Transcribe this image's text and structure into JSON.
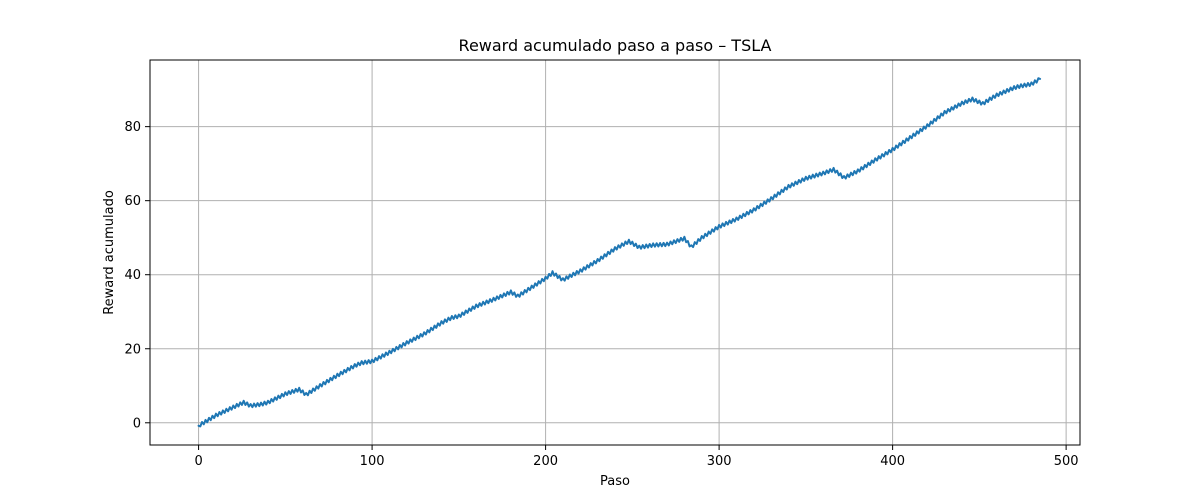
{
  "chart_data": {
    "type": "line",
    "title": "Reward acumulado paso a paso – TSLA",
    "xlabel": "Paso",
    "ylabel": "Reward acumulado",
    "xlim": [
      -28,
      508
    ],
    "ylim": [
      -6,
      98
    ],
    "xticks": [
      0,
      100,
      200,
      300,
      400,
      500
    ],
    "yticks": [
      0,
      20,
      40,
      60,
      80
    ],
    "grid": true,
    "colors": {
      "line": "#1f77b4",
      "grid": "#b0b0b0"
    },
    "series": [
      {
        "name": "",
        "x": [
          0,
          10,
          20,
          26,
          30,
          36,
          40,
          50,
          58,
          62,
          70,
          80,
          90,
          94,
          100,
          110,
          120,
          130,
          140,
          146,
          150,
          160,
          170,
          180,
          184,
          190,
          200,
          204,
          210,
          214,
          220,
          230,
          240,
          248,
          254,
          262,
          270,
          280,
          284,
          290,
          300,
          310,
          320,
          330,
          340,
          350,
          360,
          366,
          372,
          380,
          390,
          400,
          410,
          420,
          430,
          440,
          446,
          452,
          456,
          460,
          470,
          474,
          480,
          485
        ],
        "y": [
          -0.8,
          2.0,
          4.2,
          5.5,
          4.6,
          5.0,
          5.5,
          7.8,
          9.0,
          7.6,
          10.0,
          12.8,
          15.4,
          16.2,
          16.6,
          19.0,
          21.6,
          24.0,
          27.0,
          28.4,
          28.8,
          31.5,
          33.3,
          35.3,
          34.2,
          36.0,
          39.0,
          40.5,
          38.6,
          39.6,
          41.0,
          43.8,
          47.0,
          49.0,
          47.4,
          48.0,
          48.2,
          49.8,
          47.5,
          50.0,
          53.0,
          55.0,
          57.5,
          60.5,
          63.8,
          66.0,
          67.4,
          68.4,
          66.2,
          68.0,
          71.0,
          73.8,
          77.0,
          80.2,
          83.8,
          86.3,
          87.4,
          86.2,
          87.4,
          88.5,
          90.5,
          91.0,
          91.5,
          92.9
        ]
      }
    ]
  }
}
